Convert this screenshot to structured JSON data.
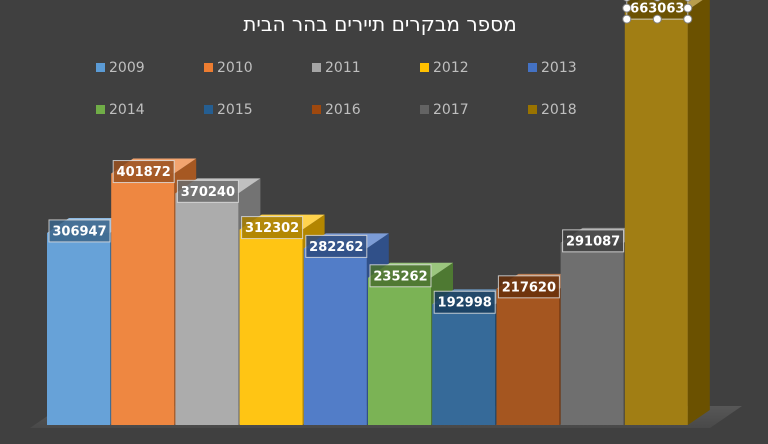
{
  "chart_data": {
    "type": "bar",
    "title": "מספר מבקרים תיירים בהר הבית",
    "categories": [
      "2009",
      "2010",
      "2011",
      "2012",
      "2013",
      "2014",
      "2015",
      "2016",
      "2017",
      "2018"
    ],
    "values": [
      306947,
      401872,
      370240,
      312302,
      282262,
      235262,
      192998,
      217620,
      291087,
      663063
    ],
    "value_labels": [
      "306947",
      "401872",
      "370240",
      "312302",
      "282262",
      "235262",
      "192998",
      "217620",
      "291087",
      "663063"
    ],
    "colors": [
      "#5B9BD5",
      "#ED7D31",
      "#A5A5A5",
      "#FFC000",
      "#4472C4",
      "#70AD47",
      "#255E91",
      "#9E480E",
      "#636363",
      "#997300"
    ],
    "ylim": [
      0,
      700000
    ],
    "legend_position": "top",
    "grid": false,
    "style": "3d-column",
    "selected_label_index": 9
  }
}
